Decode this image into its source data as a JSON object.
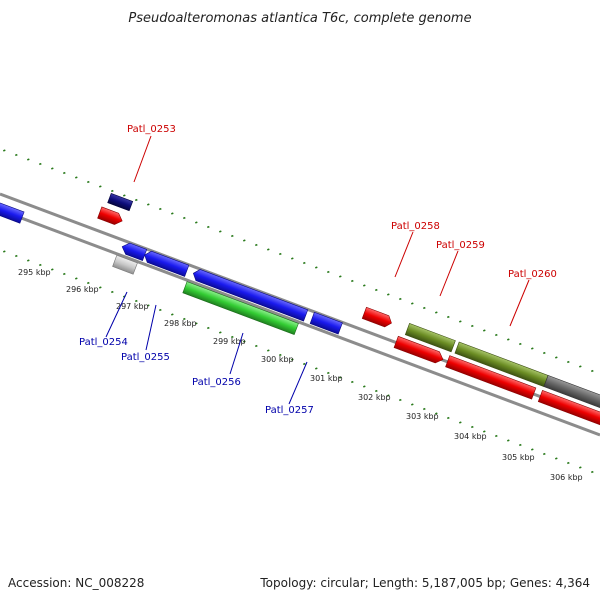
{
  "title": "Pseudoalteromonas atlantica T6c, complete genome",
  "footer": {
    "accession": "Accession: NC_008228",
    "summary": "Topology: circular; Length: 5,187,005 bp; Genes: 4,364"
  },
  "colors": {
    "background": "#ffffff",
    "backbone": "#8c8c8c",
    "tick_green": "#2a7a1c",
    "label_red": "#cc0000",
    "label_blue": "#0000aa",
    "gene_blue": "#1a1aee",
    "gene_navy": "#0d0d7a",
    "gene_red": "#ee0000",
    "gene_pink": "#ee1a99",
    "gene_green": "#33cc33",
    "gene_olive": "#6b8c23",
    "gene_gray": "#666666",
    "gene_lightgray": "#c8c8c8"
  },
  "kbp_labels": [
    "295 kbp",
    "296 kbp",
    "297 kbp",
    "298 kbp",
    "299 kbp",
    "300 kbp",
    "301 kbp",
    "302 kbp",
    "303 kbp",
    "304 kbp",
    "305 kbp",
    "306 kbp"
  ],
  "gene_labels": [
    {
      "name": "Patl_0253",
      "color": "red"
    },
    {
      "name": "Patl_0258",
      "color": "red"
    },
    {
      "name": "Patl_0259",
      "color": "red"
    },
    {
      "name": "Patl_0260",
      "color": "red"
    },
    {
      "name": "Patl_0254",
      "color": "blue"
    },
    {
      "name": "Patl_0255",
      "color": "blue"
    },
    {
      "name": "Patl_0256",
      "color": "blue"
    },
    {
      "name": "Patl_0257",
      "color": "blue"
    }
  ]
}
